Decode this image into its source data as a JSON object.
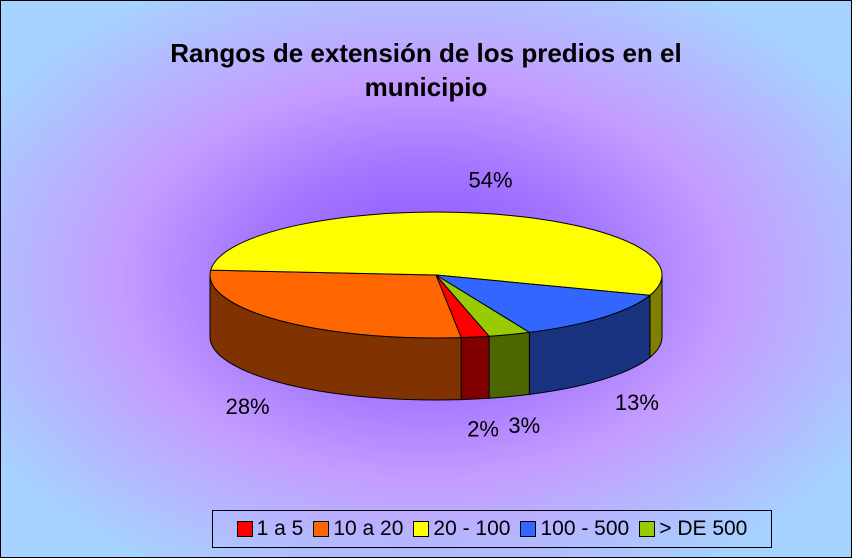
{
  "chart_data": {
    "type": "pie3d",
    "title": "Rangos de extensión de los predios en el municipio",
    "categories": [
      "1 a 5",
      "10 a 20",
      "20 - 100",
      "100 - 500",
      "> DE 500"
    ],
    "values": [
      2,
      28,
      54,
      13,
      3
    ],
    "value_labels": [
      "2%",
      "28%",
      "54%",
      "13%",
      "3%"
    ],
    "colors": [
      "#ff0000",
      "#ff6600",
      "#ffff00",
      "#3366ff",
      "#99cc00"
    ],
    "legend": "bottom"
  }
}
